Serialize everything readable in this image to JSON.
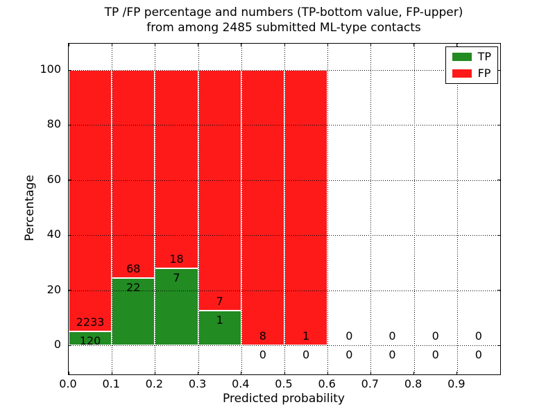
{
  "chart_data": {
    "type": "bar",
    "stacked": true,
    "title": "TP /FP percentage and numbers (TP-bottom value, FP-upper)",
    "subtitle": "from among 2485 submitted ML-type contacts",
    "xlabel": "Predicted probability",
    "ylabel": "Percentage",
    "bin_starts": [
      0.0,
      0.1,
      0.2,
      0.3,
      0.4,
      0.5,
      0.6,
      0.7,
      0.8,
      0.9
    ],
    "bin_width": 0.1,
    "series": [
      {
        "name": "TP",
        "color": "#228b22",
        "counts": [
          120,
          22,
          7,
          1,
          0,
          0,
          0,
          0,
          0,
          0
        ]
      },
      {
        "name": "FP",
        "color": "#ff1a1a",
        "counts": [
          2233,
          68,
          18,
          7,
          8,
          1,
          0,
          0,
          0,
          0
        ]
      }
    ],
    "tp_percent_of_bin": [
      5.1,
      24.4,
      28.0,
      12.5,
      0.0,
      0.0,
      null,
      null,
      null,
      null
    ],
    "bar_total_percent": 100,
    "xticks": [
      "0.0",
      "0.1",
      "0.2",
      "0.3",
      "0.4",
      "0.5",
      "0.6",
      "0.7",
      "0.8",
      "0.9"
    ],
    "yticks": [
      "0",
      "20",
      "40",
      "60",
      "80",
      "100"
    ],
    "xlim": [
      0.0,
      1.0
    ],
    "ylim": [
      -10.6,
      109.7
    ],
    "grid": "dotted",
    "legend": {
      "position": "upper right",
      "entries": [
        {
          "label": "TP",
          "color": "#228b22"
        },
        {
          "label": "FP",
          "color": "#ff1a1a"
        }
      ]
    }
  }
}
